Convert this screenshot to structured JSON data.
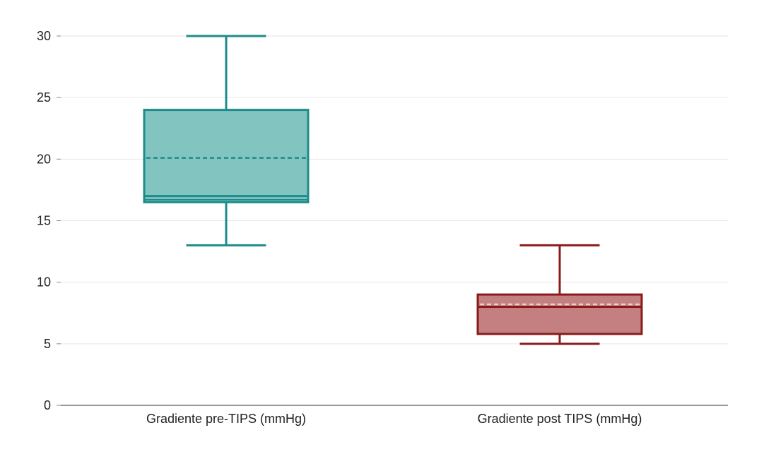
{
  "chart_data": {
    "type": "box",
    "title": "",
    "xlabel": "",
    "ylabel": "",
    "ylim": [
      0,
      30
    ],
    "y_ticks": [
      0,
      5,
      10,
      15,
      20,
      25,
      30
    ],
    "grid": "horizontal",
    "legend": "none",
    "series": [
      {
        "category": "Gradiente pre-TIPS (mmHg)",
        "min": 13,
        "q1": 16.5,
        "median": 17,
        "q1_inner_line": 16.7,
        "mean": 20.1,
        "q3": 24,
        "max": 30,
        "fill_color": "#82c4c0",
        "stroke_color": "#1d8c8a"
      },
      {
        "category": "Gradiente post TIPS (mmHg)",
        "min": 5,
        "q1": 5.8,
        "median": 8,
        "mean": 8.2,
        "q3": 9,
        "max": 13,
        "fill_color": "#c48080",
        "stroke_color": "#8b1a1a"
      }
    ]
  }
}
